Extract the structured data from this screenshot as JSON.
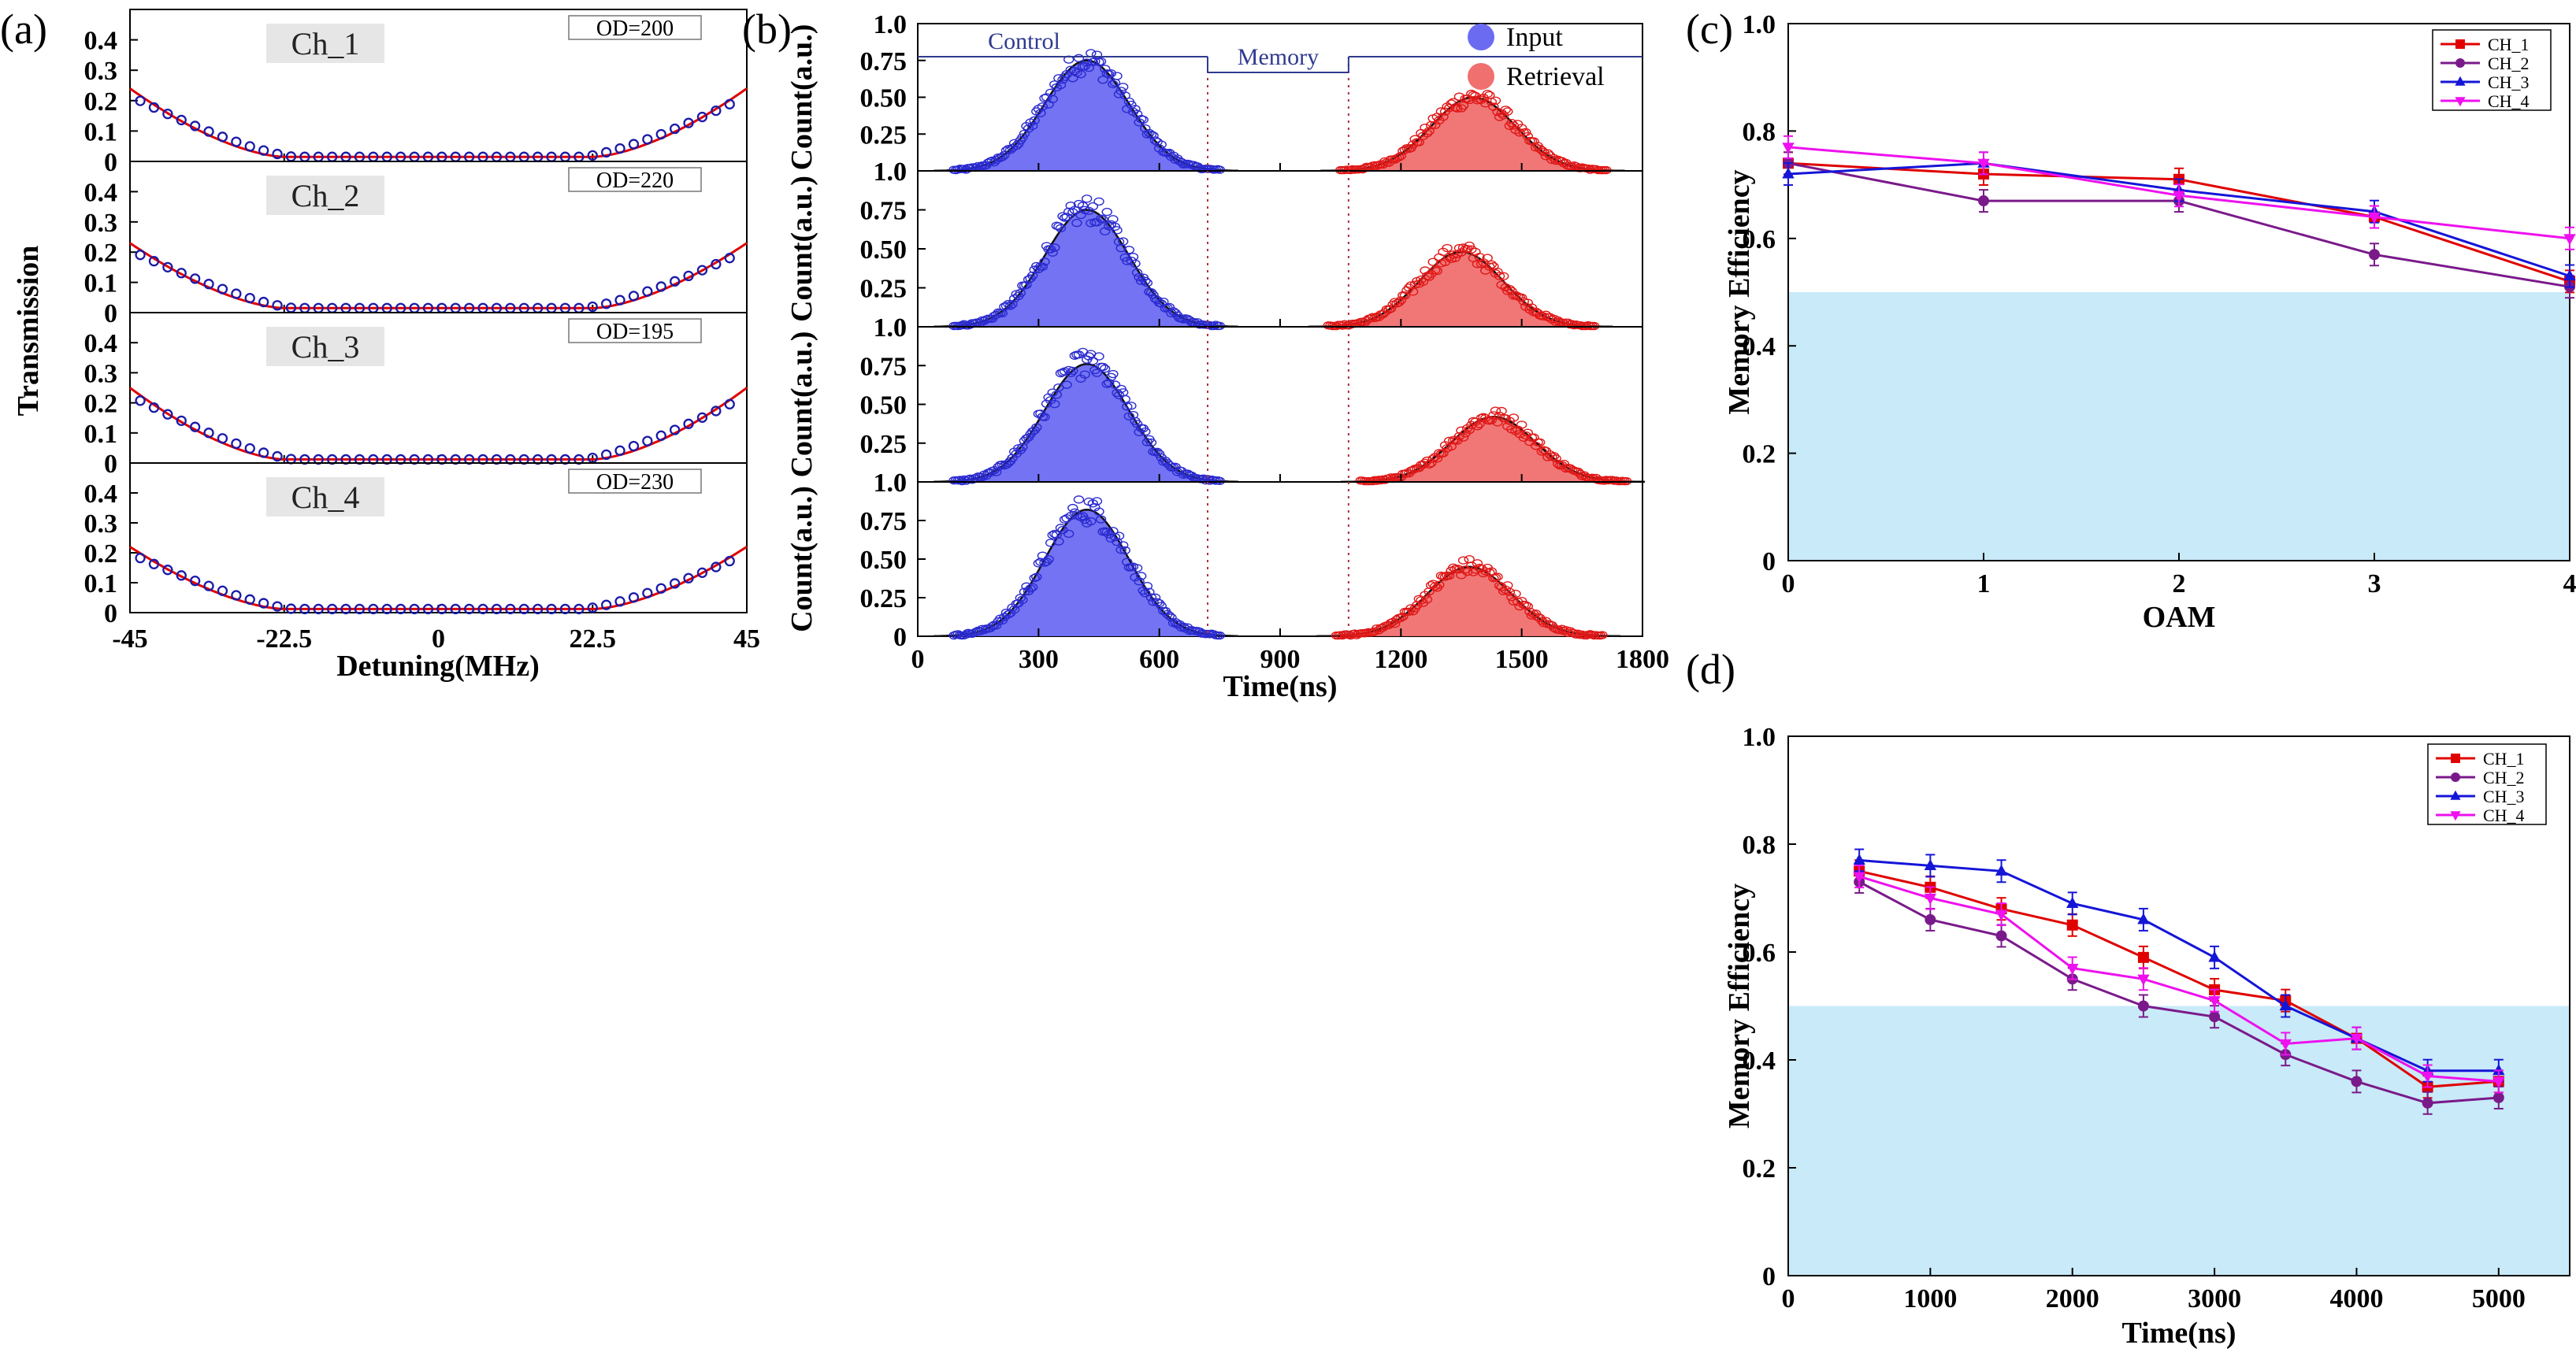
{
  "chart_data": {
    "panel_a": {
      "label": "(a)",
      "type": "scatter",
      "xlabel": "Detuning(MHz)",
      "ylabel": "Transmission",
      "xlim": [
        -45,
        45
      ],
      "ylim": [
        0,
        0.5
      ],
      "x_ticks": [
        "-45",
        "-22.5",
        "0",
        "22.5",
        "45"
      ],
      "y_ticks": [
        "0",
        "0.1",
        "0.2",
        "0.3",
        "0.4"
      ],
      "channels": [
        {
          "name": "Ch_1",
          "od": "OD=200",
          "base": 0.015,
          "curve_edge": 0.24
        },
        {
          "name": "Ch_2",
          "od": "OD=220",
          "base": 0.015,
          "curve_edge": 0.23
        },
        {
          "name": "Ch_3",
          "od": "OD=195",
          "base": 0.012,
          "curve_edge": 0.25
        },
        {
          "name": "Ch_4",
          "od": "OD=230",
          "base": 0.012,
          "curve_edge": 0.22
        }
      ],
      "colors": {
        "data": "#1a1aa8",
        "fit": "#e00000"
      }
    },
    "panel_b": {
      "label": "(b)",
      "type": "scatter",
      "xlabel": "Time(ns)",
      "ylabel": "Count(a.u.)",
      "xlim": [
        0,
        1800
      ],
      "ylim": [
        0,
        1.0
      ],
      "x_ticks": [
        "0",
        "300",
        "600",
        "900",
        "1200",
        "1500",
        "1800"
      ],
      "y_ticks": [
        "0",
        "0.25",
        "0.50",
        "0.75",
        "1.0"
      ],
      "phase_labels": {
        "control": "Control",
        "memory": "Memory"
      },
      "memory_window": [
        720,
        1070
      ],
      "legend": {
        "input": "Input",
        "retrieval": "Retrieval"
      },
      "rows": [
        {
          "input_center": 420,
          "input_amp": 0.75,
          "ret_center": 1380,
          "ret_amp": 0.5
        },
        {
          "input_center": 420,
          "input_amp": 0.75,
          "ret_center": 1350,
          "ret_amp": 0.48
        },
        {
          "input_center": 420,
          "input_amp": 0.76,
          "ret_center": 1430,
          "ret_amp": 0.42
        },
        {
          "input_center": 420,
          "input_amp": 0.82,
          "ret_center": 1370,
          "ret_amp": 0.45
        }
      ],
      "sigma": 105,
      "colors": {
        "input": "#6b6bf2",
        "input_edge": "#2a2ad0",
        "retrieval": "#f07070",
        "retrieval_edge": "#e01818"
      }
    },
    "panel_c": {
      "label": "(c)",
      "type": "line",
      "xlabel": "OAM",
      "ylabel": "Memory Efficiency",
      "xlim": [
        0,
        4
      ],
      "ylim": [
        0,
        1.0
      ],
      "x_ticks": [
        "0",
        "1",
        "2",
        "3",
        "4"
      ],
      "y_ticks": [
        "0",
        "0.2",
        "0.4",
        "0.6",
        "0.8",
        "1.0"
      ],
      "shade_below": 0.5,
      "x": [
        0,
        1,
        2,
        3,
        4
      ],
      "series": [
        {
          "name": "CH_1",
          "color": "#e00000",
          "marker": "square",
          "values": [
            0.74,
            0.72,
            0.71,
            0.64,
            0.52
          ]
        },
        {
          "name": "CH_2",
          "color": "#7a1a8a",
          "marker": "circle",
          "values": [
            0.74,
            0.67,
            0.67,
            0.57,
            0.51
          ]
        },
        {
          "name": "CH_3",
          "color": "#1515d8",
          "marker": "triangle-up",
          "values": [
            0.72,
            0.74,
            0.69,
            0.65,
            0.53
          ]
        },
        {
          "name": "CH_4",
          "color": "#ee10ee",
          "marker": "triangle-down",
          "values": [
            0.77,
            0.74,
            0.68,
            0.64,
            0.6
          ]
        }
      ]
    },
    "panel_d": {
      "label": "(d)",
      "type": "line",
      "xlabel": "Time(ns)",
      "ylabel": "Memory Efficiency",
      "xlim": [
        0,
        5500
      ],
      "ylim": [
        0,
        1.0
      ],
      "x_ticks": [
        "0",
        "1000",
        "2000",
        "3000",
        "4000",
        "5000"
      ],
      "y_ticks": [
        "0",
        "0.2",
        "0.4",
        "0.6",
        "0.8",
        "1.0"
      ],
      "shade_below": 0.5,
      "x": [
        500,
        1000,
        1500,
        2000,
        2500,
        3000,
        3500,
        4000,
        4500,
        5000
      ],
      "series": [
        {
          "name": "CH_1",
          "color": "#e00000",
          "marker": "square",
          "values": [
            0.75,
            0.72,
            0.68,
            0.65,
            0.59,
            0.53,
            0.51,
            0.44,
            0.35,
            0.36
          ]
        },
        {
          "name": "CH_2",
          "color": "#7a1a8a",
          "marker": "circle",
          "values": [
            0.73,
            0.66,
            0.63,
            0.55,
            0.5,
            0.48,
            0.41,
            0.36,
            0.32,
            0.33
          ]
        },
        {
          "name": "CH_3",
          "color": "#1515d8",
          "marker": "triangle-up",
          "values": [
            0.77,
            0.76,
            0.75,
            0.69,
            0.66,
            0.59,
            0.5,
            0.44,
            0.38,
            0.38
          ]
        },
        {
          "name": "CH_4",
          "color": "#ee10ee",
          "marker": "triangle-down",
          "values": [
            0.74,
            0.7,
            0.67,
            0.57,
            0.55,
            0.51,
            0.43,
            0.44,
            0.37,
            0.36
          ]
        }
      ]
    }
  }
}
